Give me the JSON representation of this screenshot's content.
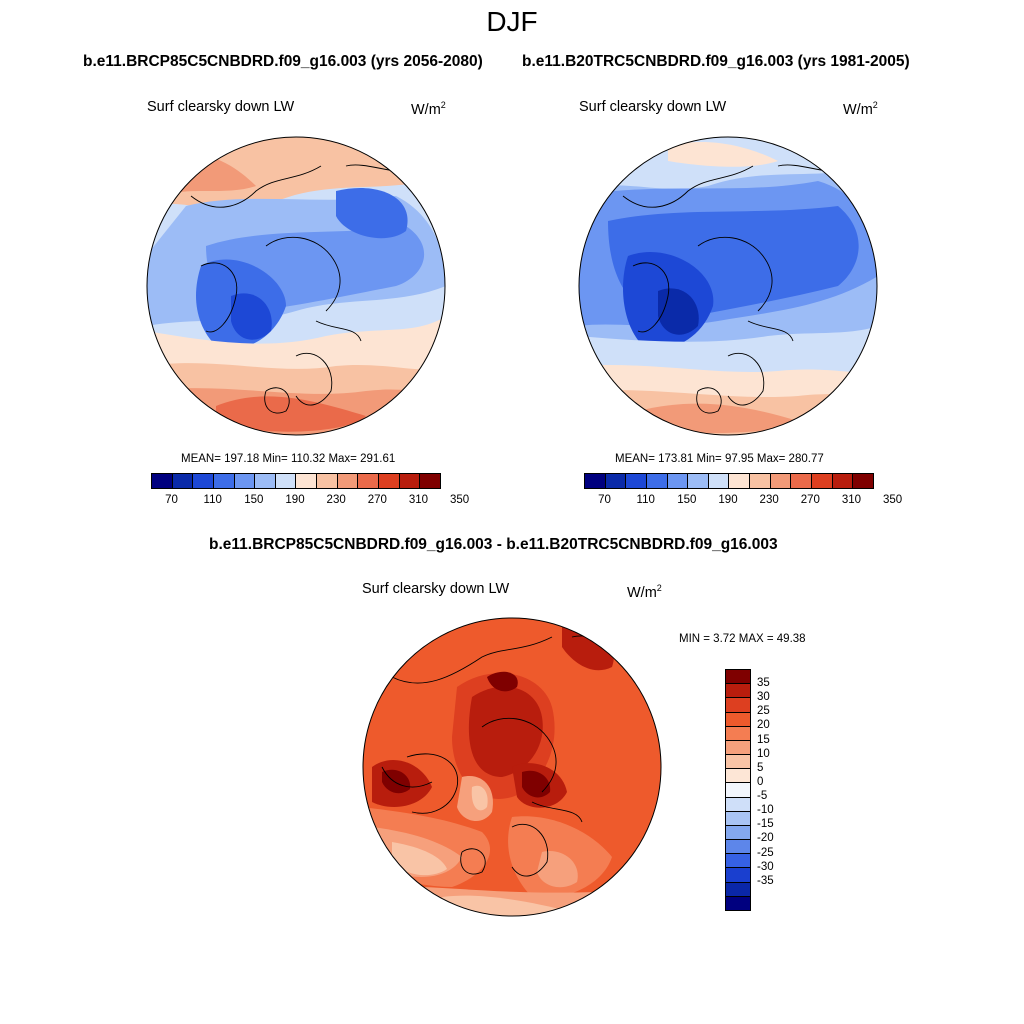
{
  "season": "DJF",
  "panels": {
    "left": {
      "case_title": "b.e11.BRCP85C5CNBDRD.f09_g16.003 (yrs 2056-2080)",
      "variable": "Surf clearsky down LW",
      "units_base": "W/m",
      "units_exp": "2",
      "stats": "MEAN= 197.18  Min= 110.32  Max= 291.61"
    },
    "right": {
      "case_title": "b.e11.B20TRC5CNBDRD.f09_g16.003 (yrs 1981-2005)",
      "variable": "Surf clearsky down LW",
      "units_base": "W/m",
      "units_exp": "2",
      "stats": "MEAN= 173.81  Min=  97.95  Max= 280.77"
    },
    "diff": {
      "case_title": "b.e11.BRCP85C5CNBDRD.f09_g16.003 - b.e11.B20TRC5CNBDRD.f09_g16.003",
      "variable": "Surf clearsky down LW",
      "units_base": "W/m",
      "units_exp": "2",
      "stats": "MIN =   3.72 MAX =  49.38"
    }
  },
  "colorbar_abs": {
    "colors": [
      "#00007f",
      "#0a2aa9",
      "#1d48d6",
      "#3d6de8",
      "#6c96f2",
      "#9cbcf6",
      "#cfe0f9",
      "#fde4d3",
      "#f8c2a3",
      "#f29a78",
      "#ea6a4a",
      "#dd3f20",
      "#b81d0d",
      "#7f0000"
    ],
    "labels": [
      "70",
      "110",
      "150",
      "190",
      "230",
      "270",
      "310",
      "350"
    ]
  },
  "colorbar_diff": {
    "colors": [
      "#7f0000",
      "#b81d0d",
      "#dd3f20",
      "#ee5a2c",
      "#f47d52",
      "#f6a07c",
      "#f9c4a6",
      "#fde6d6",
      "#f2f6fd",
      "#cfdff9",
      "#a9c4f4",
      "#84a8ef",
      "#5d86ea",
      "#3661e4",
      "#1a3fcf",
      "#0a27a8",
      "#00007f"
    ],
    "labels": [
      "35",
      "30",
      "25",
      "20",
      "15",
      "10",
      "5",
      "0",
      "-5",
      "-10",
      "-15",
      "-20",
      "-25",
      "-30",
      "-35"
    ]
  }
}
